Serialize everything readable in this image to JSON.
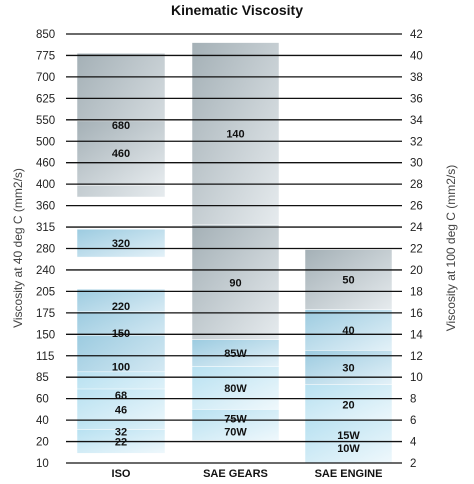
{
  "chart_data": {
    "type": "bar",
    "title": "Kinematic Viscosity",
    "ylabel_left": "Viscosity at 40 deg C (mm2/s)",
    "ylabel_right": "Viscosity at 100 deg C (mm2/s)",
    "left_ticks": [
      "850",
      "775",
      "700",
      "625",
      "550",
      "500",
      "460",
      "400",
      "360",
      "315",
      "280",
      "240",
      "205",
      "175",
      "150",
      "115",
      "85",
      "60",
      "40",
      "20",
      "10"
    ],
    "right_ticks": [
      "42",
      "40",
      "38",
      "36",
      "34",
      "32",
      "30",
      "28",
      "26",
      "24",
      "22",
      "20",
      "18",
      "16",
      "14",
      "12",
      "10",
      "8",
      "6",
      "4",
      "2"
    ],
    "right_range": [
      2,
      42
    ],
    "categories": [
      "ISO",
      "SAE GEARS",
      "SAE ENGINE"
    ],
    "series": [
      {
        "category": "ISO",
        "bands": [
          {
            "label": "680",
            "low": 26.8,
            "high": 40.2
          },
          {
            "label": "460",
            "low": 27.9,
            "high": 33.9
          },
          {
            "label": "320",
            "low": 21.2,
            "high": 23.8
          },
          {
            "label": "220",
            "low": 15.1,
            "high": 18.2
          },
          {
            "label": "150",
            "low": 12.1,
            "high": 16.1
          },
          {
            "label": "100",
            "low": 8.1,
            "high": 13.9
          },
          {
            "label": "68",
            "low": 6.2,
            "high": 10.5
          },
          {
            "label": "46",
            "low": 5.1,
            "high": 8.9
          },
          {
            "label": "32",
            "low": 3.9,
            "high": 6.0
          },
          {
            "label": "22",
            "low": 2.9,
            "high": 5.1
          }
        ]
      },
      {
        "category": "SAE GEARS",
        "bands": [
          {
            "label": "140",
            "low": 24.2,
            "high": 41.2
          },
          {
            "label": "90",
            "low": 13.5,
            "high": 24.2
          },
          {
            "label": "85W",
            "low": 11.0,
            "high": 13.5
          },
          {
            "label": "80W",
            "low": 7.0,
            "high": 11.0
          },
          {
            "label": "75W",
            "low": 4.1,
            "high": 7.0
          },
          {
            "label": "70W",
            "low": 4.1,
            "high": 7.0
          }
        ]
      },
      {
        "category": "SAE ENGINE",
        "bands": [
          {
            "label": "50",
            "low": 16.3,
            "high": 21.9
          },
          {
            "label": "40",
            "low": 12.5,
            "high": 16.3
          },
          {
            "label": "30",
            "low": 9.3,
            "high": 12.5
          },
          {
            "label": "20",
            "low": 5.6,
            "high": 9.3
          },
          {
            "label": "15W",
            "low": 2.0,
            "high": 6.0
          },
          {
            "label": "10W",
            "low": 2.0,
            "high": 6.0
          }
        ]
      }
    ],
    "grid": false,
    "legend": "none"
  }
}
